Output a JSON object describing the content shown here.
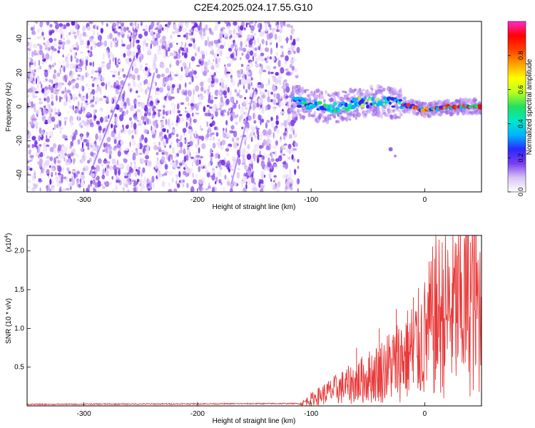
{
  "title": "C2E4.2025.024.17.55.G10",
  "chart_data": [
    {
      "type": "heatmap",
      "xlabel": "Height of straight line (km)",
      "ylabel": "Frequency (Hz)",
      "xlim": [
        -350,
        50
      ],
      "ylim": [
        -50,
        50
      ],
      "xticks": [
        -300,
        -200,
        -100,
        0
      ],
      "yticks": [
        -40,
        -20,
        0,
        20,
        40
      ],
      "grid": false,
      "noise_region_x": [
        -350,
        -115
      ],
      "ridge": [
        {
          "x": -115,
          "y": 3
        },
        {
          "x": -100,
          "y": 1
        },
        {
          "x": -80,
          "y": -1
        },
        {
          "x": -60,
          "y": 2
        },
        {
          "x": -40,
          "y": 3
        },
        {
          "x": -25,
          "y": 2
        },
        {
          "x": -10,
          "y": 0
        },
        {
          "x": 0,
          "y": -2
        },
        {
          "x": 10,
          "y": -1
        },
        {
          "x": 30,
          "y": 0
        },
        {
          "x": 50,
          "y": 0
        }
      ],
      "annotations": [
        {
          "x": -28,
          "y": -25,
          "label": ""
        }
      ],
      "colorbar": {
        "label": "Normalized spectral amplitude",
        "range": [
          0,
          1
        ],
        "ticks": [
          0.0,
          0.2,
          0.4,
          0.6,
          0.8
        ],
        "tick_labels": [
          "0.0",
          "0.2",
          "0.4",
          "0.6",
          "0.8"
        ],
        "colors": [
          "#ffffff",
          "#d8c4f5",
          "#7a3cf0",
          "#2a2aff",
          "#00b4ff",
          "#00e8c8",
          "#22e060",
          "#b8ff20",
          "#ffff00",
          "#ffa000",
          "#ff4000",
          "#ff0000",
          "#ff2ad0"
        ]
      }
    },
    {
      "type": "line",
      "xlabel": "Height of straight line (km)",
      "ylabel": "SNR (10 * v/v)",
      "y_multiplier_label": "(x10",
      "y_multiplier_exp": "4",
      "xlim": [
        -350,
        50
      ],
      "ylim": [
        0,
        2.2
      ],
      "xticks": [
        -300,
        -200,
        -100,
        0
      ],
      "yticks": [
        0.5,
        1.0,
        1.5,
        2.0
      ],
      "ytick_labels": [
        "0.5",
        "1.0",
        "1.5",
        "2.0"
      ],
      "grid": false,
      "line_color": "#e83a3a",
      "envelope": [
        {
          "x": -350,
          "y": 0.02
        },
        {
          "x": -110,
          "y": 0.03
        },
        {
          "x": -100,
          "y": 0.12
        },
        {
          "x": -80,
          "y": 0.28
        },
        {
          "x": -60,
          "y": 0.42
        },
        {
          "x": -40,
          "y": 0.6
        },
        {
          "x": -20,
          "y": 0.85
        },
        {
          "x": -10,
          "y": 1.0
        },
        {
          "x": 0,
          "y": 1.2
        },
        {
          "x": 10,
          "y": 1.6
        },
        {
          "x": 20,
          "y": 1.65
        },
        {
          "x": 30,
          "y": 1.75
        },
        {
          "x": 40,
          "y": 1.95
        },
        {
          "x": 50,
          "y": 1.7
        }
      ],
      "peaks": [
        {
          "x": -60,
          "y": 0.75
        },
        {
          "x": -40,
          "y": 1.0
        },
        {
          "x": -25,
          "y": 1.25
        },
        {
          "x": -10,
          "y": 1.4
        },
        {
          "x": 10,
          "y": 1.85
        },
        {
          "x": 45,
          "y": 2.2
        }
      ]
    }
  ]
}
